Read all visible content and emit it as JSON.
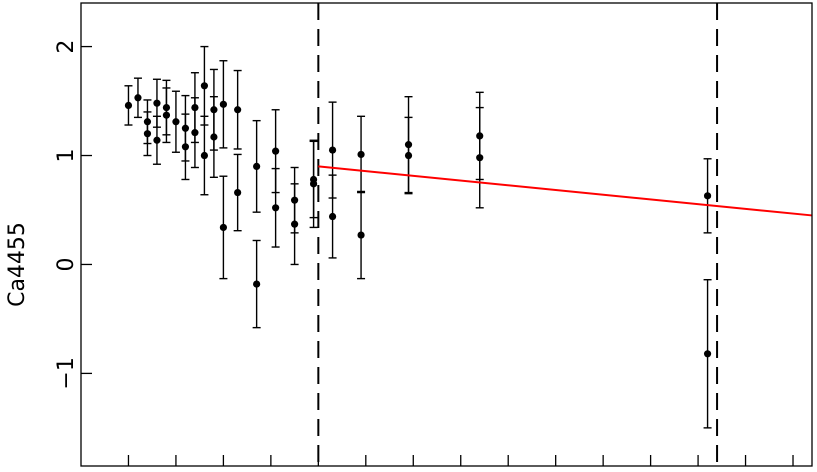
{
  "chart_data": {
    "type": "scatter",
    "ylabel": "Ca4455",
    "xlabel": "",
    "xlim": [
      -0.5,
      7.2
    ],
    "ylim": [
      -1.85,
      2.4
    ],
    "yticks": [
      -1,
      0,
      1,
      2
    ],
    "yticklabels": [
      "−1",
      "0",
      "1",
      "2"
    ],
    "xticks": [
      0,
      0.5,
      1,
      1.5,
      2,
      2.5,
      3,
      3.5,
      4,
      4.5,
      5,
      5.5,
      6,
      6.5,
      7
    ],
    "grid": false,
    "legend": "none",
    "colors": {
      "points": "#000000",
      "fit": "#ff0000",
      "guides": "#000000"
    },
    "points": [
      {
        "x": 0.0,
        "y": 1.46,
        "err": 0.18
      },
      {
        "x": 0.1,
        "y": 1.53,
        "err": 0.18
      },
      {
        "x": 0.2,
        "y": 1.31,
        "err": 0.2
      },
      {
        "x": 0.2,
        "y": 1.2,
        "err": 0.2
      },
      {
        "x": 0.3,
        "y": 1.48,
        "err": 0.22
      },
      {
        "x": 0.3,
        "y": 1.14,
        "err": 0.22
      },
      {
        "x": 0.4,
        "y": 1.44,
        "err": 0.25
      },
      {
        "x": 0.4,
        "y": 1.37,
        "err": 0.25
      },
      {
        "x": 0.5,
        "y": 1.31,
        "err": 0.28
      },
      {
        "x": 0.6,
        "y": 1.25,
        "err": 0.3
      },
      {
        "x": 0.6,
        "y": 1.08,
        "err": 0.3
      },
      {
        "x": 0.7,
        "y": 1.44,
        "err": 0.32
      },
      {
        "x": 0.7,
        "y": 1.21,
        "err": 0.32
      },
      {
        "x": 0.8,
        "y": 1.64,
        "err": 0.36
      },
      {
        "x": 0.8,
        "y": 1.0,
        "err": 0.36
      },
      {
        "x": 0.9,
        "y": 1.42,
        "err": 0.37
      },
      {
        "x": 0.9,
        "y": 1.17,
        "err": 0.37
      },
      {
        "x": 1.0,
        "y": 1.47,
        "err": 0.4
      },
      {
        "x": 1.0,
        "y": 0.34,
        "err": 0.47
      },
      {
        "x": 1.15,
        "y": 1.42,
        "err": 0.36
      },
      {
        "x": 1.15,
        "y": 0.66,
        "err": 0.35
      },
      {
        "x": 1.35,
        "y": 0.9,
        "err": 0.42
      },
      {
        "x": 1.35,
        "y": -0.18,
        "err": 0.4
      },
      {
        "x": 1.55,
        "y": 1.04,
        "err": 0.38
      },
      {
        "x": 1.55,
        "y": 0.52,
        "err": 0.36
      },
      {
        "x": 1.75,
        "y": 0.59,
        "err": 0.3
      },
      {
        "x": 1.75,
        "y": 0.37,
        "err": 0.37
      },
      {
        "x": 1.95,
        "y": 0.78,
        "err": 0.35
      },
      {
        "x": 1.95,
        "y": 0.74,
        "err": 0.4
      },
      {
        "x": 2.15,
        "y": 1.05,
        "err": 0.44
      },
      {
        "x": 2.15,
        "y": 0.44,
        "err": 0.38
      },
      {
        "x": 2.45,
        "y": 1.01,
        "err": 0.35
      },
      {
        "x": 2.45,
        "y": 0.27,
        "err": 0.4
      },
      {
        "x": 2.95,
        "y": 1.1,
        "err": 0.44
      },
      {
        "x": 2.95,
        "y": 1.0,
        "err": 0.35
      },
      {
        "x": 3.7,
        "y": 1.18,
        "err": 0.4
      },
      {
        "x": 3.7,
        "y": 0.98,
        "err": 0.46
      },
      {
        "x": 6.1,
        "y": 0.63,
        "err": 0.34
      },
      {
        "x": 6.1,
        "y": -0.82,
        "err": 0.68
      }
    ],
    "fit_line": {
      "x": [
        2.0,
        7.2
      ],
      "y": [
        0.9,
        0.45
      ]
    },
    "vlines": [
      2.0,
      6.2
    ]
  }
}
